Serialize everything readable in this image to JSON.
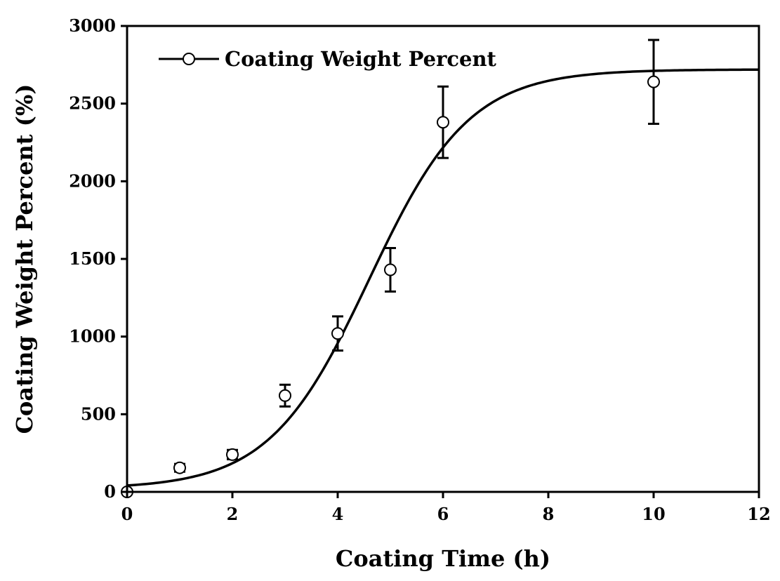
{
  "chart_data": {
    "type": "scatter",
    "title": "",
    "xlabel": "Coating Time (h)",
    "ylabel": "Coating Weight Percent (%)",
    "xlim": [
      0,
      12
    ],
    "ylim": [
      0,
      3000
    ],
    "xticks": [
      0,
      2,
      4,
      6,
      8,
      10,
      12
    ],
    "yticks": [
      0,
      500,
      1000,
      1500,
      2000,
      2500,
      3000
    ],
    "grid": false,
    "legend": {
      "position": "top-left",
      "label": "Coating Weight Percent"
    },
    "series": [
      {
        "name": "Coating Weight Percent",
        "x": [
          0,
          1,
          2,
          3,
          4,
          5,
          6,
          10
        ],
        "y": [
          0,
          155,
          240,
          620,
          1020,
          1430,
          2380,
          2640
        ],
        "error": [
          0,
          25,
          30,
          70,
          110,
          140,
          230,
          270
        ],
        "fit": {
          "model": "logistic",
          "A1": 20,
          "A2": 2720,
          "x0": 4.6,
          "dx": 0.95
        }
      }
    ],
    "colors": {
      "ink": "#000000",
      "background": "#ffffff"
    }
  }
}
